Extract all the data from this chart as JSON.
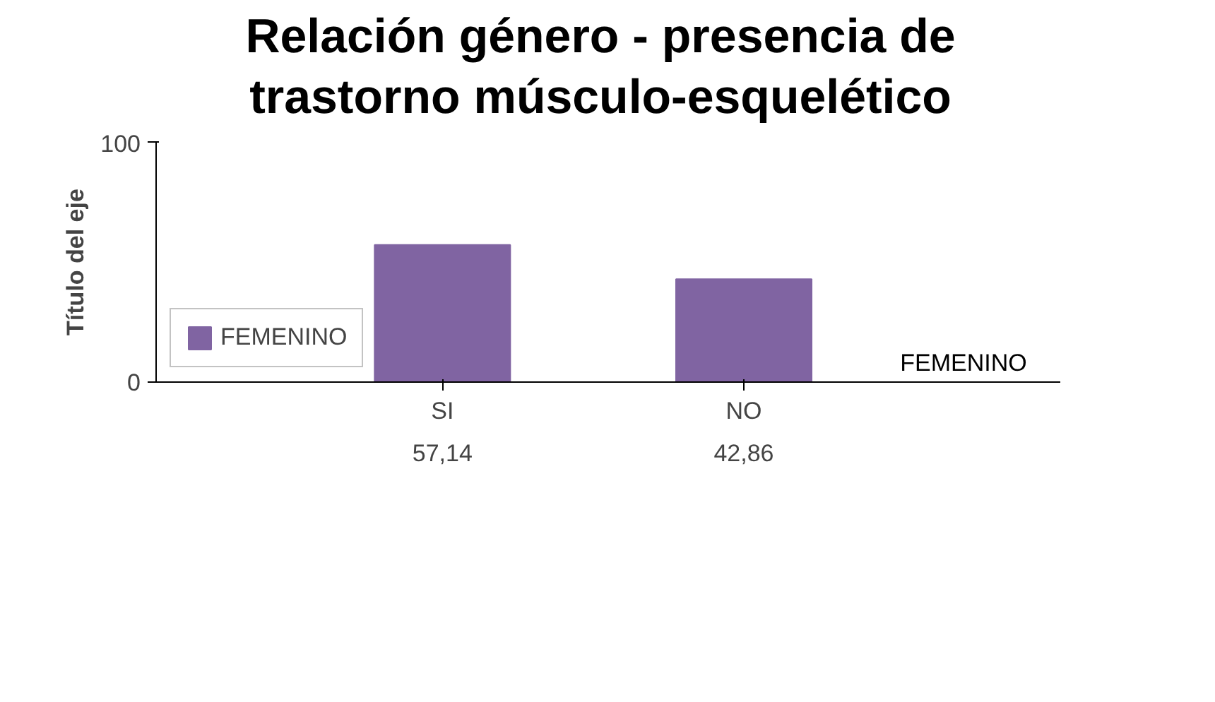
{
  "chart_data": {
    "type": "bar",
    "title": "Relación género - presencia de trastorno músculo-esquelético",
    "ylabel": "Título del eje",
    "categories": [
      "SI",
      "NO"
    ],
    "series": [
      {
        "name": "FEMENINO",
        "color": "#8064a2",
        "values": [
          57.14,
          42.86
        ],
        "value_labels": [
          "57,14",
          "42,86"
        ]
      }
    ],
    "ylim": [
      0,
      100
    ],
    "yticks": [
      0,
      100
    ],
    "grid": false,
    "legend": "bottom left"
  }
}
